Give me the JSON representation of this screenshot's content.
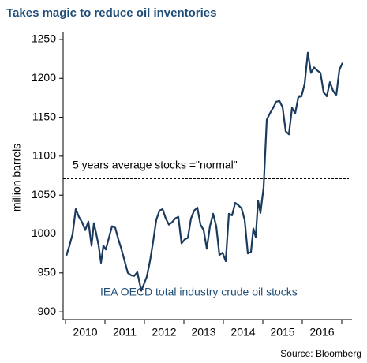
{
  "chart_data": {
    "type": "line",
    "title": "Takes magic to reduce oil inventories",
    "ylabel": "million barrels",
    "source": "Source: Bloomberg",
    "annotations": [
      "5 years average stocks =\"normal\"",
      "IEA OECD total industry crude oil stocks"
    ],
    "reference_line": 1071,
    "categories": [
      "2010",
      "2011",
      "2012",
      "2013",
      "2014",
      "2015",
      "2016"
    ],
    "xlim": [
      2009.94,
      2017.26
    ],
    "xticks": [
      2010,
      2011,
      2012,
      2013,
      2014,
      2015,
      2016,
      2017
    ],
    "ylim": [
      890,
      1255
    ],
    "yticks": [
      900,
      950,
      1000,
      1050,
      1100,
      1150,
      1200,
      1250
    ],
    "series": [
      {
        "color": "#1b3b5e",
        "x": [
          2010.02,
          2010.1,
          2010.18,
          2010.26,
          2010.34,
          2010.42,
          2010.5,
          2010.58,
          2010.66,
          2010.72,
          2010.78,
          2010.84,
          2010.9,
          2010.96,
          2011.02,
          2011.1,
          2011.18,
          2011.26,
          2011.34,
          2011.42,
          2011.5,
          2011.58,
          2011.66,
          2011.74,
          2011.82,
          2011.92,
          2012.06,
          2012.14,
          2012.22,
          2012.3,
          2012.38,
          2012.46,
          2012.54,
          2012.62,
          2012.7,
          2012.78,
          2012.86,
          2012.94,
          2013.02,
          2013.1,
          2013.18,
          2013.26,
          2013.34,
          2013.42,
          2013.5,
          2013.58,
          2013.66,
          2013.74,
          2013.82,
          2013.9,
          2013.98,
          2014.06,
          2014.14,
          2014.22,
          2014.3,
          2014.38,
          2014.46,
          2014.54,
          2014.62,
          2014.7,
          2014.76,
          2014.82,
          2014.88,
          2014.94,
          2015.02,
          2015.1,
          2015.18,
          2015.26,
          2015.34,
          2015.42,
          2015.5,
          2015.58,
          2015.66,
          2015.74,
          2015.82,
          2015.9,
          2015.98,
          2016.06,
          2016.14,
          2016.22,
          2016.3,
          2016.38,
          2016.46,
          2016.54,
          2016.62,
          2016.7,
          2016.78,
          2016.86,
          2016.94,
          2017.02
        ],
        "values": [
          972,
          985,
          1000,
          1032,
          1022,
          1015,
          1005,
          1016,
          985,
          1014,
          1000,
          985,
          963,
          985,
          980,
          995,
          1010,
          1008,
          993,
          980,
          965,
          950,
          947,
          946,
          951,
          927,
          945,
          965,
          990,
          1018,
          1030,
          1032,
          1020,
          1012,
          1015,
          1020,
          1022,
          988,
          993,
          995,
          1020,
          1030,
          1034,
          1012,
          1005,
          981,
          1010,
          1026,
          1010,
          973,
          976,
          965,
          1026,
          1024,
          1040,
          1037,
          1033,
          1018,
          975,
          977,
          1007,
          996,
          1043,
          1027,
          1060,
          1147,
          1155,
          1162,
          1170,
          1171,
          1163,
          1132,
          1128,
          1162,
          1155,
          1176,
          1177,
          1193,
          1233,
          1207,
          1214,
          1210,
          1207,
          1182,
          1177,
          1195,
          1184,
          1178,
          1211,
          1220
        ]
      }
    ]
  }
}
